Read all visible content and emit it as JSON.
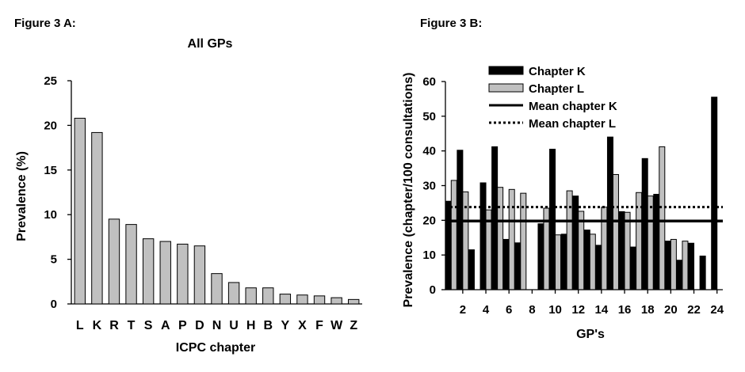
{
  "figure_a_label": "Figure 3 A:",
  "figure_b_label": "Figure 3 B:",
  "chart_data": [
    {
      "type": "bar",
      "title": "All GPs",
      "xlabel": "ICPC chapter",
      "ylabel": "Prevalence (%)",
      "ylim": [
        0,
        25
      ],
      "yticks": [
        "0",
        "5",
        "10",
        "15",
        "20",
        "25"
      ],
      "categories": [
        "L",
        "K",
        "R",
        "T",
        "S",
        "A",
        "P",
        "D",
        "N",
        "U",
        "H",
        "B",
        "Y",
        "X",
        "F",
        "W",
        "Z"
      ],
      "values": [
        20.8,
        19.2,
        9.5,
        8.9,
        7.3,
        7.0,
        6.7,
        6.5,
        3.4,
        2.4,
        1.8,
        1.8,
        1.1,
        1.0,
        0.9,
        0.7,
        0.5
      ],
      "bar_color": "#c0c0c0",
      "grid": false
    },
    {
      "type": "bar",
      "xlabel": "GP's",
      "ylabel": "Prevalence (chapter/100 consultations)",
      "ylim": [
        0,
        60
      ],
      "yticks": [
        "0",
        "10",
        "20",
        "30",
        "40",
        "50",
        "60"
      ],
      "xticks": [
        "2",
        "4",
        "6",
        "8",
        "10",
        "12",
        "14",
        "16",
        "18",
        "20",
        "22",
        "24"
      ],
      "x": [
        1,
        2,
        3,
        4,
        5,
        6,
        7,
        8,
        9,
        10,
        11,
        12,
        13,
        14,
        15,
        16,
        17,
        18,
        19,
        20,
        21,
        22,
        23,
        24
      ],
      "series": [
        {
          "name": "Chapter K",
          "color": "#000000",
          "values": [
            25.5,
            40.2,
            11.5,
            30.8,
            41.2,
            14.5,
            13.5,
            null,
            19.0,
            40.5,
            16.0,
            27.0,
            17.2,
            12.8,
            44.0,
            22.5,
            12.3,
            37.8,
            27.5,
            14.0,
            8.5,
            13.4,
            9.7,
            55.5
          ]
        },
        {
          "name": "Chapter L",
          "color": "#c0c0c0",
          "values": [
            31.5,
            28.2,
            null,
            23.0,
            29.5,
            28.9,
            27.8,
            null,
            23.5,
            15.8,
            28.5,
            22.6,
            16.0,
            23.8,
            33.2,
            22.3,
            28.0,
            27.0,
            41.2,
            14.5,
            14.0,
            null,
            null,
            null
          ]
        }
      ],
      "reference_lines": [
        {
          "name": "Mean chapter K",
          "value": 19.8,
          "style": "solid"
        },
        {
          "name": "Mean chapter L",
          "value": 23.8,
          "style": "dotted"
        }
      ],
      "legend": [
        "Chapter K",
        "Chapter L",
        "Mean chapter K",
        "Mean chapter L"
      ],
      "legend_position": "top-left",
      "grid": false
    }
  ]
}
